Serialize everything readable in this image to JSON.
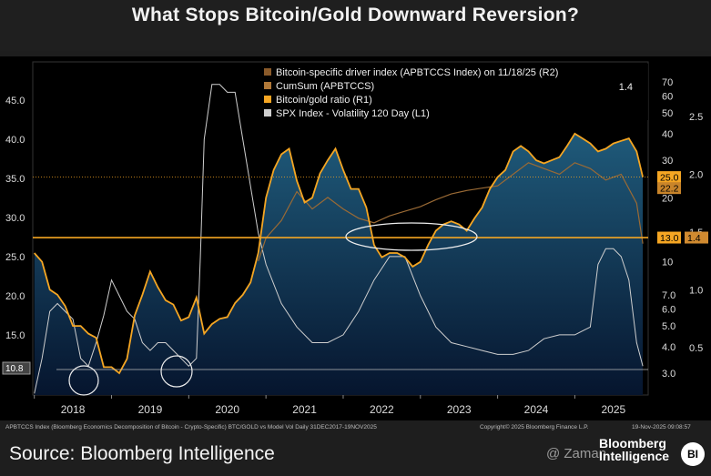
{
  "title": "What Stops Bitcoin/Gold Downward Reversion?",
  "footnote_left": "APBTCCS Index (Bloomberg Economics Decomposition of Bitcoin - Crypto-Specific) BTC/GOLD vs Model Vol Daily 31DEC2017-19NOV2025",
  "footnote_copyright": "Copyright© 2025 Bloomberg Finance L.P.",
  "footnote_date": "19-Nov-2025 09:08:57",
  "source": "Source: Bloomberg Intelligence",
  "brand_line1": "Bloomberg",
  "brand_line2": "Intelligence",
  "brand_logo_text": "BI",
  "watermark_text": "@ Zaman",
  "colors": {
    "ratio_line": "#f5a623",
    "area_top": "#1f5a7a",
    "area_bottom": "#06152e",
    "spx_line": "#cfcfcf",
    "cumsum_line": "#b07838",
    "driver_line": "#8a5a2a",
    "hline": "#f5a623"
  },
  "chart_data": {
    "type": "line",
    "title": "What Stops Bitcoin/Gold Downward Reversion?",
    "x_ticks": [
      "2018",
      "2019",
      "2020",
      "2021",
      "2022",
      "2023",
      "2024",
      "2025"
    ],
    "left_axis_ticks": [
      "45.0",
      "40.0",
      "35.0",
      "30.0",
      "25.0",
      "20.0",
      "15.0",
      "10.8"
    ],
    "right_axis1_ticks": [
      "70",
      "60",
      "50",
      "40",
      "30",
      "20",
      "10",
      "7.0",
      "6.0",
      "5.0",
      "4.0",
      "3.0"
    ],
    "right_axis2_ticks": [
      "2.5",
      "2.0",
      "1.5",
      "1.0",
      "0.5"
    ],
    "legend": [
      "Bitcoin-specific driver index (APBTCCS Index) on 11/18/25 (R2)",
      "CumSum (APBTCCS)",
      "Bitcoin/gold ratio (R1)",
      "SPX Index - Volatility 120 Day (L1)"
    ],
    "legend_value": "1.4",
    "last_value_labels": [
      "25.0",
      "22.2",
      "13.0",
      "1.4"
    ],
    "left_last_label": "10.8",
    "series": [
      {
        "name": "Bitcoin/gold ratio (R1)",
        "x": [
          2018.0,
          2018.1,
          2018.2,
          2018.3,
          2018.4,
          2018.5,
          2018.6,
          2018.7,
          2018.8,
          2018.9,
          2019.0,
          2019.1,
          2019.2,
          2019.3,
          2019.4,
          2019.5,
          2019.6,
          2019.7,
          2019.8,
          2019.9,
          2020.0,
          2020.1,
          2020.2,
          2020.3,
          2020.4,
          2020.5,
          2020.6,
          2020.7,
          2020.8,
          2020.9,
          2021.0,
          2021.1,
          2021.2,
          2021.3,
          2021.4,
          2021.5,
          2021.6,
          2021.7,
          2021.8,
          2021.9,
          2022.0,
          2022.1,
          2022.2,
          2022.3,
          2022.4,
          2022.5,
          2022.6,
          2022.7,
          2022.8,
          2022.9,
          2023.0,
          2023.1,
          2023.2,
          2023.3,
          2023.4,
          2023.5,
          2023.6,
          2023.7,
          2023.8,
          2023.9,
          2024.0,
          2024.1,
          2024.2,
          2024.3,
          2024.4,
          2024.5,
          2024.6,
          2024.7,
          2024.8,
          2024.9,
          2025.0,
          2025.1,
          2025.2,
          2025.3,
          2025.4,
          2025.5,
          2025.6,
          2025.7,
          2025.8,
          2025.88
        ],
        "values": [
          11.0,
          10.0,
          7.4,
          7.0,
          6.2,
          5.0,
          5.0,
          4.6,
          4.4,
          3.2,
          3.2,
          3.0,
          3.5,
          5.6,
          7.0,
          9.0,
          7.6,
          6.6,
          6.3,
          5.3,
          5.5,
          6.8,
          4.6,
          5.1,
          5.4,
          5.5,
          6.4,
          7.0,
          8.0,
          11.0,
          20.0,
          27.0,
          32.0,
          34.0,
          24.0,
          19.0,
          20.0,
          26.0,
          30.0,
          34.0,
          27.0,
          22.0,
          22.0,
          18.0,
          12.0,
          10.5,
          11.0,
          11.0,
          10.5,
          9.5,
          10.0,
          12.0,
          14.0,
          15.0,
          15.5,
          15.0,
          14.0,
          16.0,
          18.0,
          22.0,
          25.0,
          27.0,
          33.0,
          35.0,
          33.0,
          30.0,
          29.0,
          30.0,
          31.0,
          35.0,
          40.0,
          38.0,
          36.0,
          33.0,
          34.0,
          36.0,
          37.0,
          38.0,
          33.0,
          25.0
        ]
      },
      {
        "name": "SPX Index - Volatility 120 Day (L1)",
        "x": [
          2018.0,
          2018.1,
          2018.2,
          2018.3,
          2018.4,
          2018.5,
          2018.6,
          2018.7,
          2018.8,
          2018.9,
          2019.0,
          2019.1,
          2019.2,
          2019.3,
          2019.4,
          2019.5,
          2019.6,
          2019.7,
          2019.8,
          2019.9,
          2020.0,
          2020.1,
          2020.15,
          2020.2,
          2020.3,
          2020.4,
          2020.5,
          2020.6,
          2020.7,
          2020.8,
          2020.9,
          2021.0,
          2021.2,
          2021.4,
          2021.6,
          2021.8,
          2022.0,
          2022.2,
          2022.4,
          2022.6,
          2022.8,
          2023.0,
          2023.2,
          2023.4,
          2023.6,
          2023.8,
          2024.0,
          2024.2,
          2024.4,
          2024.6,
          2024.8,
          2025.0,
          2025.2,
          2025.3,
          2025.4,
          2025.5,
          2025.6,
          2025.7,
          2025.8,
          2025.88
        ],
        "values": [
          7.5,
          12.0,
          18.0,
          19.0,
          18.0,
          17.0,
          12.0,
          11.0,
          14.0,
          17.5,
          22.0,
          20.0,
          18.0,
          17.0,
          14.0,
          13.0,
          14.0,
          14.0,
          13.0,
          12.0,
          11.0,
          12.0,
          25.0,
          40.0,
          47.0,
          47.0,
          46.0,
          46.0,
          40.0,
          34.0,
          28.0,
          24.0,
          19.0,
          16.0,
          14.0,
          14.0,
          15.0,
          18.0,
          22.0,
          25.0,
          25.0,
          20.0,
          16.0,
          14.0,
          13.5,
          13.0,
          12.5,
          12.5,
          13.0,
          14.5,
          15.0,
          15.0,
          16.0,
          24.0,
          26.0,
          26.0,
          25.0,
          22.0,
          14.0,
          11.0
        ]
      },
      {
        "name": "CumSum (APBTCCS)",
        "x": [
          2020.9,
          2021.0,
          2021.2,
          2021.4,
          2021.6,
          2021.8,
          2022.0,
          2022.2,
          2022.4,
          2022.6,
          2022.8,
          2023.0,
          2023.2,
          2023.4,
          2023.6,
          2023.8,
          2024.0,
          2024.2,
          2024.4,
          2024.6,
          2024.8,
          2025.0,
          2025.2,
          2025.4,
          2025.6,
          2025.8,
          2025.88
        ],
        "values": [
          1.25,
          1.45,
          1.6,
          1.85,
          1.7,
          1.8,
          1.7,
          1.62,
          1.58,
          1.64,
          1.68,
          1.72,
          1.78,
          1.83,
          1.86,
          1.88,
          1.9,
          2.0,
          2.1,
          2.05,
          2.0,
          2.1,
          2.05,
          1.95,
          2.0,
          1.75,
          1.4
        ]
      }
    ],
    "hlines": [
      {
        "axis": "R1",
        "value": 13.0
      },
      {
        "axis": "R1",
        "value": 25.0
      }
    ],
    "annotations": [
      "circle 2018 low",
      "circle 2019/2020 low",
      "ellipse 2022-2023 range"
    ]
  }
}
